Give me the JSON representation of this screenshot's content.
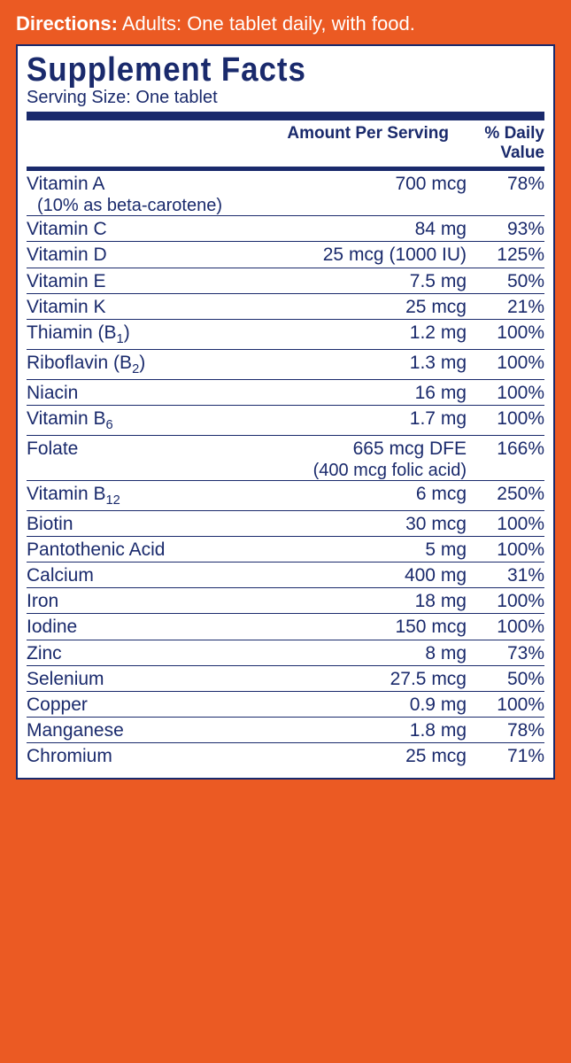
{
  "directions_label": "Directions:",
  "directions_text": "  Adults:  One tablet daily, with food.",
  "panel": {
    "title": "Supplement Facts",
    "serving": "Serving Size: One tablet",
    "header_amt": "Amount Per Serving",
    "header_dv": "% Daily Value",
    "rows": [
      {
        "name": "Vitamin A",
        "sub": "(10% as beta-carotene)",
        "amt": "700 mcg",
        "dv": "78%"
      },
      {
        "name": "Vitamin C",
        "amt": "84 mg",
        "dv": "93%"
      },
      {
        "name": "Vitamin D",
        "amt": "25 mcg (1000 IU)",
        "dv": "125%"
      },
      {
        "name": "Vitamin E",
        "amt": "7.5 mg",
        "dv": "50%"
      },
      {
        "name": "Vitamin K",
        "amt": "25 mcg",
        "dv": "21%"
      },
      {
        "name": "Thiamin (B₁)",
        "amt": "1.2 mg",
        "dv": "100%"
      },
      {
        "name": "Riboflavin (B₂)",
        "amt": "1.3 mg",
        "dv": "100%"
      },
      {
        "name": "Niacin",
        "amt": "16 mg",
        "dv": "100%"
      },
      {
        "name": "Vitamin B₆",
        "amt": "1.7 mg",
        "dv": "100%"
      },
      {
        "name": "Folate",
        "amt": "665 mcg DFE",
        "amt_sub": "(400 mcg folic acid)",
        "dv": "166%"
      },
      {
        "name": "Vitamin B₁₂",
        "amt": "6 mcg",
        "dv": "250%"
      },
      {
        "name": "Biotin",
        "amt": "30 mcg",
        "dv": "100%"
      },
      {
        "name": "Pantothenic Acid",
        "amt": "5 mg",
        "dv": "100%"
      },
      {
        "name": "Calcium",
        "amt": "400 mg",
        "dv": "31%"
      },
      {
        "name": "Iron",
        "amt": "18 mg",
        "dv": "100%"
      },
      {
        "name": "Iodine",
        "amt": "150 mcg",
        "dv": "100%"
      },
      {
        "name": "Zinc",
        "amt": "8 mg",
        "dv": "73%"
      },
      {
        "name": "Selenium",
        "amt": "27.5 mcg",
        "dv": "50%"
      },
      {
        "name": "Copper",
        "amt": "0.9 mg",
        "dv": "100%"
      },
      {
        "name": "Manganese",
        "amt": "1.8 mg",
        "dv": "78%"
      },
      {
        "name": "Chromium",
        "amt": "25 mcg",
        "dv": "71%"
      }
    ]
  },
  "colors": {
    "bg": "#eb5a23",
    "ink": "#1a2a6c",
    "panel": "#ffffff"
  }
}
